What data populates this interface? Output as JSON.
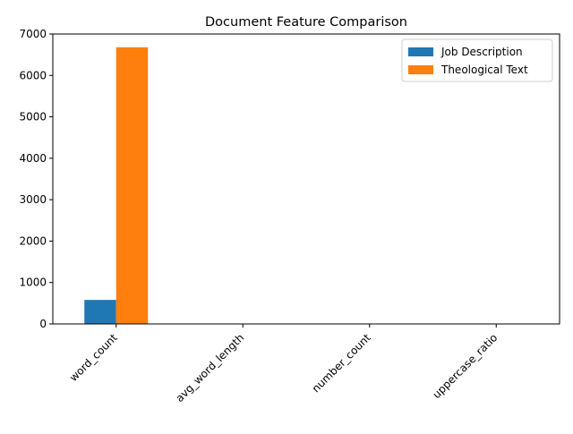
{
  "chart_data": {
    "type": "bar",
    "title": "Document Feature Comparison",
    "xlabel": "",
    "ylabel": "",
    "categories": [
      "word_count",
      "avg_word_length",
      "number_count",
      "uppercase_ratio"
    ],
    "series": [
      {
        "name": "Job Description",
        "color": "#1f77b4",
        "values": [
          580,
          6,
          0,
          0.03
        ]
      },
      {
        "name": "Theological Text",
        "color": "#ff7f0e",
        "values": [
          6680,
          5,
          3,
          0.04
        ]
      }
    ],
    "ylim": [
      0,
      7000
    ],
    "yticks": [
      0,
      1000,
      2000,
      3000,
      4000,
      5000,
      6000,
      7000
    ],
    "grid": false,
    "legend_position": "top-right"
  }
}
